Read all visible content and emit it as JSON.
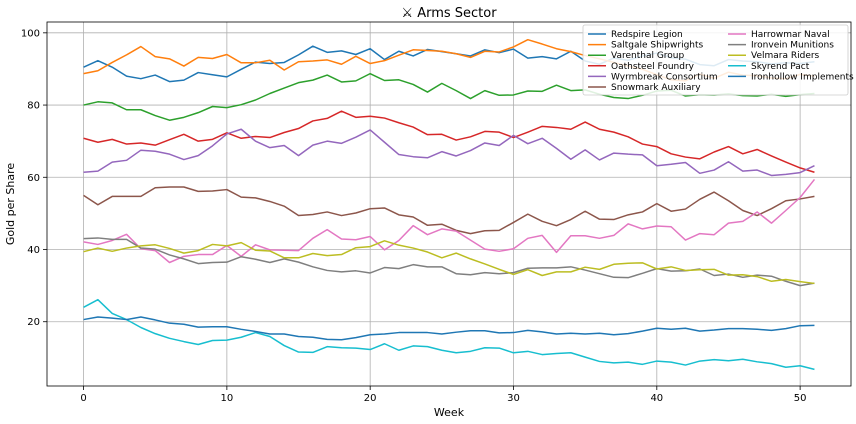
{
  "chart_data": {
    "type": "line",
    "title": "⚔ Arms Sector",
    "xlabel": "Week",
    "ylabel": "Gold per Share",
    "xlim": [
      -2.55,
      53.55
    ],
    "ylim": [
      2.2,
      103.0
    ],
    "x_ticks": [
      0,
      10,
      20,
      30,
      40,
      50
    ],
    "y_ticks": [
      20,
      40,
      60,
      80,
      100
    ],
    "grid": true,
    "legend_position": "top-right",
    "x": [
      0,
      1,
      2,
      3,
      4,
      5,
      6,
      7,
      8,
      9,
      10,
      11,
      12,
      13,
      14,
      15,
      16,
      17,
      18,
      19,
      20,
      21,
      22,
      23,
      24,
      25,
      26,
      27,
      28,
      29,
      30,
      31,
      32,
      33,
      34,
      35,
      36,
      37,
      38,
      39,
      40,
      41,
      42,
      43,
      44,
      45,
      46,
      47,
      48,
      49,
      50,
      51
    ],
    "series": [
      {
        "name": "Redspire Legion",
        "color": "#1f77b4",
        "values": [
          90.5,
          92.3,
          90.5,
          88.0,
          87.3,
          88.3,
          86.5,
          86.9,
          89.0,
          88.4,
          87.8,
          89.9,
          91.9,
          91.5,
          91.8,
          93.9,
          96.3,
          94.6,
          95.0,
          94.0,
          95.6,
          92.6,
          94.9,
          93.6,
          95.4,
          94.8,
          94.2,
          93.6,
          95.3,
          94.5,
          95.5,
          93.0,
          93.4,
          92.8,
          94.9,
          92.2,
          91.3,
          93.0,
          92.4,
          93.6,
          94.4,
          93.1,
          92.7,
          91.2,
          90.9,
          92.6,
          92.2,
          92.0,
          91.4,
          91.7,
          91.5,
          92.0
        ]
      },
      {
        "name": "Saltgale Shipwrights",
        "color": "#ff7f0e",
        "values": [
          88.7,
          89.5,
          91.8,
          93.9,
          96.2,
          93.4,
          92.8,
          90.8,
          93.2,
          92.9,
          94.0,
          91.7,
          91.7,
          92.4,
          89.7,
          92.0,
          92.2,
          92.5,
          91.3,
          93.5,
          91.5,
          92.3,
          93.8,
          95.3,
          95.1,
          94.9,
          94.2,
          93.2,
          94.9,
          94.7,
          96.1,
          98.1,
          96.9,
          95.6,
          94.8,
          93.7,
          92.8,
          91.8,
          90.8,
          89.9,
          88.4,
          87.0,
          86.7,
          88.6,
          87.4,
          89.1,
          88.3,
          88.1,
          87.5,
          87.3,
          88.5,
          88.0
        ]
      },
      {
        "name": "Varenthal Group",
        "color": "#2ca02c",
        "values": [
          80.0,
          80.9,
          80.6,
          78.7,
          78.7,
          77.1,
          75.8,
          76.6,
          77.9,
          79.6,
          79.3,
          80.1,
          81.4,
          83.2,
          84.7,
          86.2,
          86.9,
          88.3,
          86.4,
          86.7,
          88.7,
          86.8,
          87.0,
          85.7,
          83.6,
          86.0,
          84.0,
          81.8,
          84.0,
          82.7,
          82.8,
          83.9,
          83.8,
          85.5,
          84.0,
          84.2,
          83.0,
          82.1,
          81.8,
          82.7,
          83.9,
          84.1,
          82.5,
          82.9,
          82.8,
          83.1,
          82.6,
          82.5,
          83.0,
          82.4,
          82.9,
          83.2
        ]
      },
      {
        "name": "Oathsteel Foundry",
        "color": "#d62728",
        "values": [
          70.8,
          69.7,
          70.5,
          69.2,
          69.5,
          68.9,
          70.4,
          71.9,
          70.0,
          70.5,
          72.3,
          70.8,
          71.3,
          71.0,
          72.4,
          73.5,
          75.6,
          76.3,
          78.3,
          76.6,
          76.9,
          76.4,
          75.1,
          73.9,
          71.8,
          71.9,
          70.3,
          71.2,
          72.7,
          72.5,
          71.0,
          72.5,
          74.1,
          73.8,
          73.3,
          75.3,
          73.3,
          72.5,
          71.2,
          69.2,
          68.5,
          66.5,
          65.6,
          65.1,
          67.0,
          68.5,
          66.5,
          67.7,
          65.9,
          64.2,
          62.6,
          61.4
        ]
      },
      {
        "name": "Wyrmbreak Consortium",
        "color": "#9467bd",
        "values": [
          61.4,
          61.7,
          64.2,
          64.7,
          67.5,
          67.2,
          66.4,
          64.9,
          66.0,
          68.7,
          72.0,
          73.3,
          70.0,
          68.2,
          68.8,
          66.0,
          68.9,
          70.0,
          69.4,
          71.1,
          73.1,
          69.7,
          66.3,
          65.7,
          65.4,
          67.1,
          65.9,
          67.4,
          69.5,
          68.8,
          71.6,
          69.3,
          70.8,
          68.0,
          65.0,
          67.6,
          64.8,
          66.7,
          66.4,
          66.2,
          63.2,
          63.6,
          64.1,
          61.1,
          62.0,
          64.3,
          61.7,
          62.0,
          60.5,
          60.8,
          61.3,
          63.2
        ]
      },
      {
        "name": "Snowmark Auxiliary",
        "color": "#8c564b",
        "values": [
          55.0,
          52.4,
          54.7,
          54.7,
          54.7,
          57.1,
          57.3,
          57.3,
          56.1,
          56.2,
          56.6,
          54.5,
          54.3,
          53.3,
          52.0,
          49.4,
          49.7,
          50.4,
          49.4,
          50.1,
          51.3,
          51.5,
          49.6,
          49.0,
          46.7,
          47.0,
          45.3,
          44.4,
          45.2,
          45.3,
          47.5,
          49.8,
          47.8,
          46.6,
          48.3,
          50.6,
          48.4,
          48.3,
          49.6,
          50.4,
          52.7,
          50.6,
          51.2,
          53.9,
          55.9,
          53.5,
          50.8,
          49.4,
          51.3,
          53.5,
          54.0,
          54.7
        ]
      },
      {
        "name": "Harrowmar Naval",
        "color": "#e377c2",
        "values": [
          42.1,
          41.4,
          42.5,
          44.2,
          40.2,
          39.7,
          36.4,
          38.1,
          38.6,
          38.6,
          41.1,
          38.1,
          41.3,
          39.9,
          39.8,
          39.7,
          43.1,
          45.5,
          42.9,
          42.7,
          43.6,
          39.9,
          42.5,
          46.6,
          44.1,
          45.7,
          45.1,
          42.6,
          40.1,
          39.5,
          40.2,
          43.1,
          43.9,
          39.2,
          43.8,
          43.8,
          43.1,
          43.9,
          47.1,
          45.7,
          46.5,
          46.3,
          42.6,
          44.4,
          44.1,
          47.3,
          47.8,
          50.4,
          47.3,
          50.8,
          54.4,
          59.4
        ]
      },
      {
        "name": "Ironvein Munitions",
        "color": "#7f7f7f",
        "values": [
          43.0,
          43.2,
          42.8,
          42.8,
          40.4,
          40.1,
          38.5,
          37.4,
          36.1,
          36.4,
          36.5,
          38.0,
          37.3,
          36.4,
          37.4,
          36.5,
          35.2,
          34.2,
          33.8,
          34.1,
          33.5,
          35.0,
          34.7,
          35.8,
          35.2,
          35.2,
          33.3,
          33.0,
          33.6,
          33.3,
          33.6,
          34.8,
          34.9,
          34.9,
          35.2,
          34.3,
          33.3,
          32.3,
          32.2,
          33.4,
          34.7,
          34.0,
          34.1,
          34.6,
          32.8,
          33.2,
          32.3,
          32.9,
          32.6,
          31.2,
          30.0,
          30.7
        ]
      },
      {
        "name": "Velmara Riders",
        "color": "#bcbd22",
        "values": [
          39.4,
          40.4,
          39.5,
          40.4,
          41.0,
          41.3,
          40.3,
          39.0,
          39.7,
          41.4,
          41.0,
          41.9,
          39.8,
          39.6,
          37.7,
          37.7,
          38.9,
          38.3,
          38.6,
          40.5,
          40.8,
          42.4,
          41.2,
          40.4,
          39.3,
          37.7,
          39.0,
          37.4,
          36.0,
          34.5,
          33.1,
          34.4,
          32.8,
          33.8,
          33.8,
          35.1,
          34.5,
          35.9,
          36.2,
          36.3,
          34.6,
          35.2,
          34.2,
          34.4,
          34.5,
          32.9,
          33.0,
          32.5,
          31.2,
          31.7,
          31.1,
          30.6
        ]
      },
      {
        "name": "Skyrend Pact",
        "color": "#17becf",
        "values": [
          24.0,
          26.1,
          22.3,
          20.6,
          18.4,
          16.7,
          15.4,
          14.5,
          13.7,
          14.8,
          14.9,
          15.7,
          17.0,
          15.9,
          13.4,
          11.6,
          11.5,
          13.1,
          12.8,
          12.7,
          12.3,
          13.9,
          12.1,
          13.3,
          13.1,
          12.1,
          11.4,
          11.8,
          12.8,
          12.7,
          11.4,
          11.8,
          10.9,
          11.2,
          11.4,
          10.2,
          9.0,
          8.6,
          8.8,
          8.2,
          9.1,
          8.8,
          8.0,
          9.1,
          9.5,
          9.2,
          9.6,
          8.9,
          8.4,
          7.4,
          7.8,
          6.8
        ]
      },
      {
        "name": "Ironhollow Implements",
        "color": "#1f77b4",
        "values": [
          20.6,
          21.3,
          21.0,
          20.6,
          21.3,
          20.5,
          19.6,
          19.3,
          18.5,
          18.6,
          18.6,
          17.9,
          17.3,
          16.6,
          16.6,
          15.9,
          15.7,
          15.1,
          15.0,
          15.6,
          16.4,
          16.6,
          17.0,
          17.0,
          17.0,
          16.6,
          17.1,
          17.5,
          17.5,
          16.9,
          17.0,
          17.6,
          17.2,
          16.6,
          16.8,
          16.6,
          16.8,
          16.4,
          16.7,
          17.4,
          18.2,
          17.9,
          18.2,
          17.4,
          17.7,
          18.1,
          18.1,
          17.9,
          17.6,
          18.1,
          18.9,
          19.0
        ]
      }
    ]
  }
}
